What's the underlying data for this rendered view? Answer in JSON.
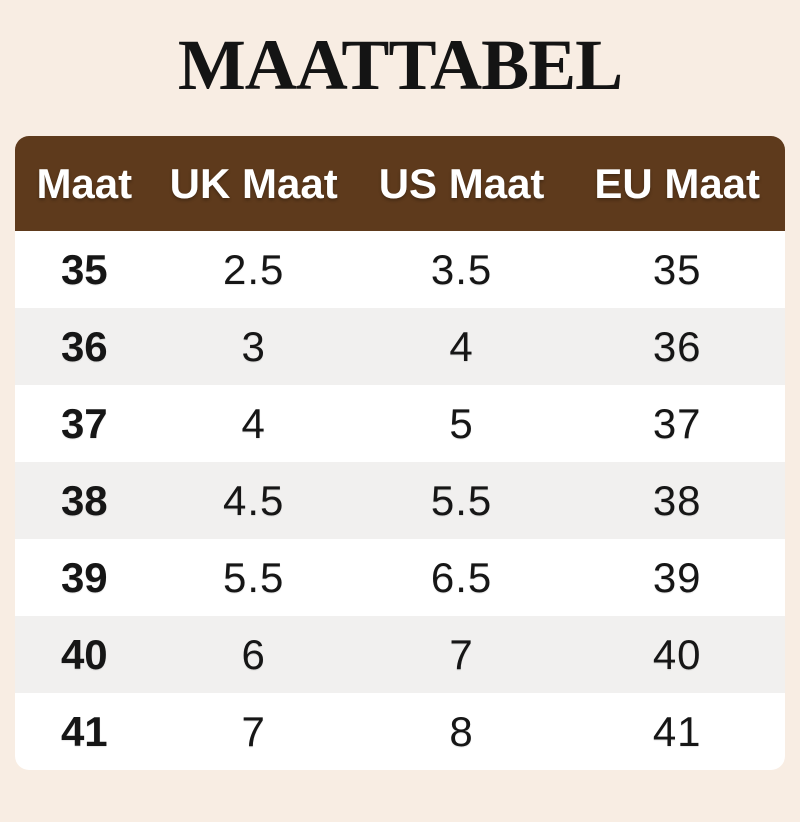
{
  "page": {
    "title": "MAATTABEL"
  },
  "chart_data": {
    "type": "table",
    "title": "MAATTABEL",
    "columns": [
      "Maat",
      "UK Maat",
      "US Maat",
      "EU Maat"
    ],
    "rows": [
      [
        "35",
        "2.5",
        "3.5",
        "35"
      ],
      [
        "36",
        "3",
        "4",
        "36"
      ],
      [
        "37",
        "4",
        "5",
        "37"
      ],
      [
        "38",
        "4.5",
        "5.5",
        "38"
      ],
      [
        "39",
        "5.5",
        "6.5",
        "39"
      ],
      [
        "40",
        "6",
        "7",
        "40"
      ],
      [
        "41",
        "7",
        "8",
        "41"
      ]
    ],
    "layout": {
      "striped": true,
      "header_position": "top",
      "corner_radius": "rounded"
    }
  },
  "style": {
    "page_bg": "#f8ede3",
    "header_bg": "#5e3a1c",
    "header_text": "#ffffff",
    "row_odd_bg": "#ffffff",
    "row_even_bg": "#f1f0ef",
    "text_color": "#161616",
    "title_color": "#141414"
  }
}
